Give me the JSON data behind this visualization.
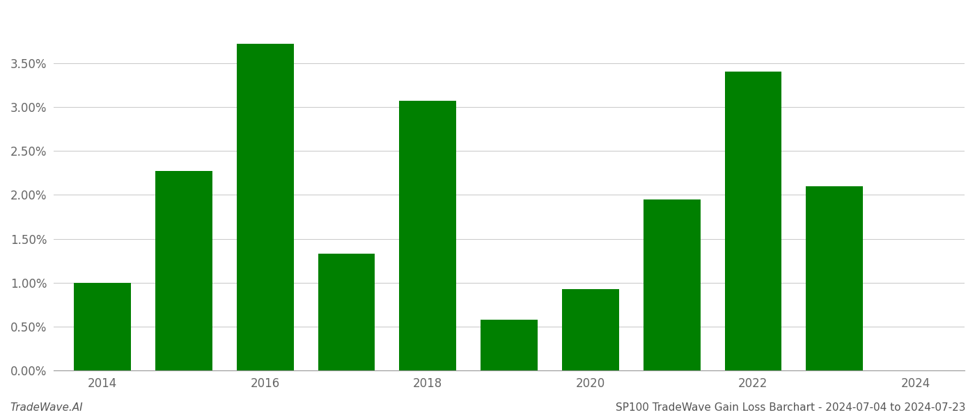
{
  "years": [
    2014,
    2015,
    2016,
    2017,
    2018,
    2019,
    2020,
    2021,
    2022,
    2023
  ],
  "values": [
    1.0,
    2.27,
    3.72,
    1.33,
    3.07,
    0.58,
    0.93,
    1.95,
    3.4,
    2.1
  ],
  "bar_color": "#008000",
  "background_color": "#ffffff",
  "grid_color": "#cccccc",
  "footer_left": "TradeWave.AI",
  "footer_right": "SP100 TradeWave Gain Loss Barchart - 2024-07-04 to 2024-07-23",
  "ylim": [
    0,
    4.1
  ],
  "ytick_values": [
    0.0,
    0.5,
    1.0,
    1.5,
    2.0,
    2.5,
    3.0,
    3.5
  ],
  "tick_fontsize": 12,
  "footer_fontsize": 11,
  "bar_width": 0.7,
  "xlim_left": 2013.4,
  "xlim_right": 2024.6,
  "xtick_positions": [
    2014,
    2016,
    2018,
    2020,
    2022,
    2024
  ],
  "xtick_labels": [
    "2014",
    "2016",
    "2018",
    "2020",
    "2022",
    "2024"
  ]
}
